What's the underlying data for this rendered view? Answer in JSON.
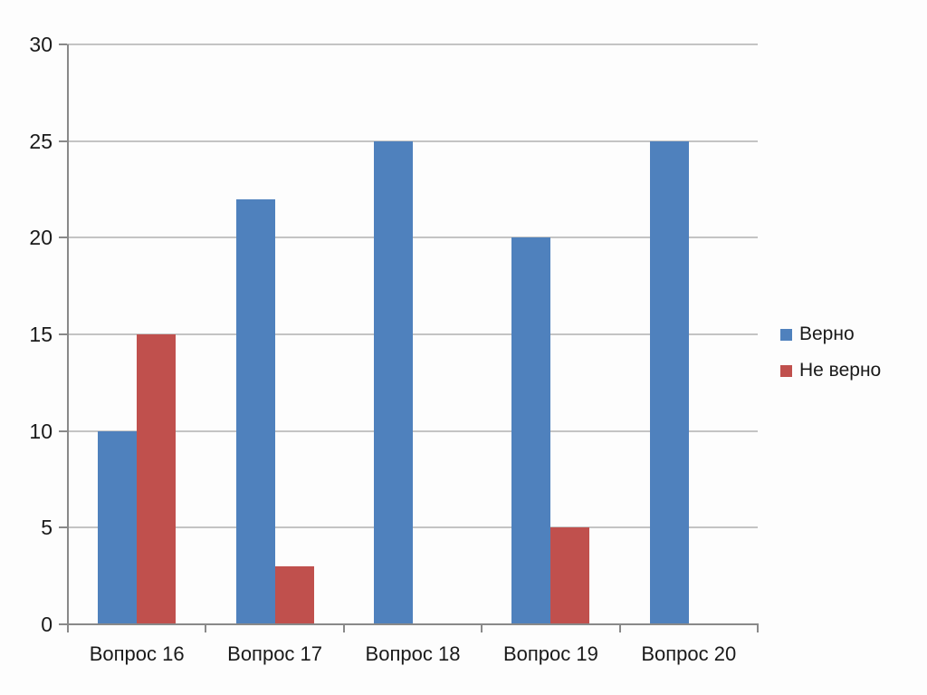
{
  "page": {
    "background": "#FDFDFD"
  },
  "chart_data": {
    "type": "bar",
    "title": "",
    "xlabel": "",
    "ylabel": "",
    "categories": [
      "Вопрос 16",
      "Вопрос 17",
      "Вопрос 18",
      "Вопрос 19",
      "Вопрос 20"
    ],
    "series": [
      {
        "name": "Верно",
        "color": "#4F81BD",
        "values": [
          10,
          22,
          25,
          20,
          25
        ]
      },
      {
        "name": "Не верно",
        "color": "#C0504D",
        "values": [
          15,
          3,
          0,
          5,
          0
        ]
      }
    ],
    "ylim": [
      0,
      30
    ],
    "yticks": [
      0,
      5,
      10,
      15,
      20,
      25,
      30
    ],
    "grid": true,
    "legend_position": "right",
    "colors": {
      "axis": "#898989",
      "gridline": "#C4C4C4",
      "text": "#1A1A1A"
    }
  }
}
